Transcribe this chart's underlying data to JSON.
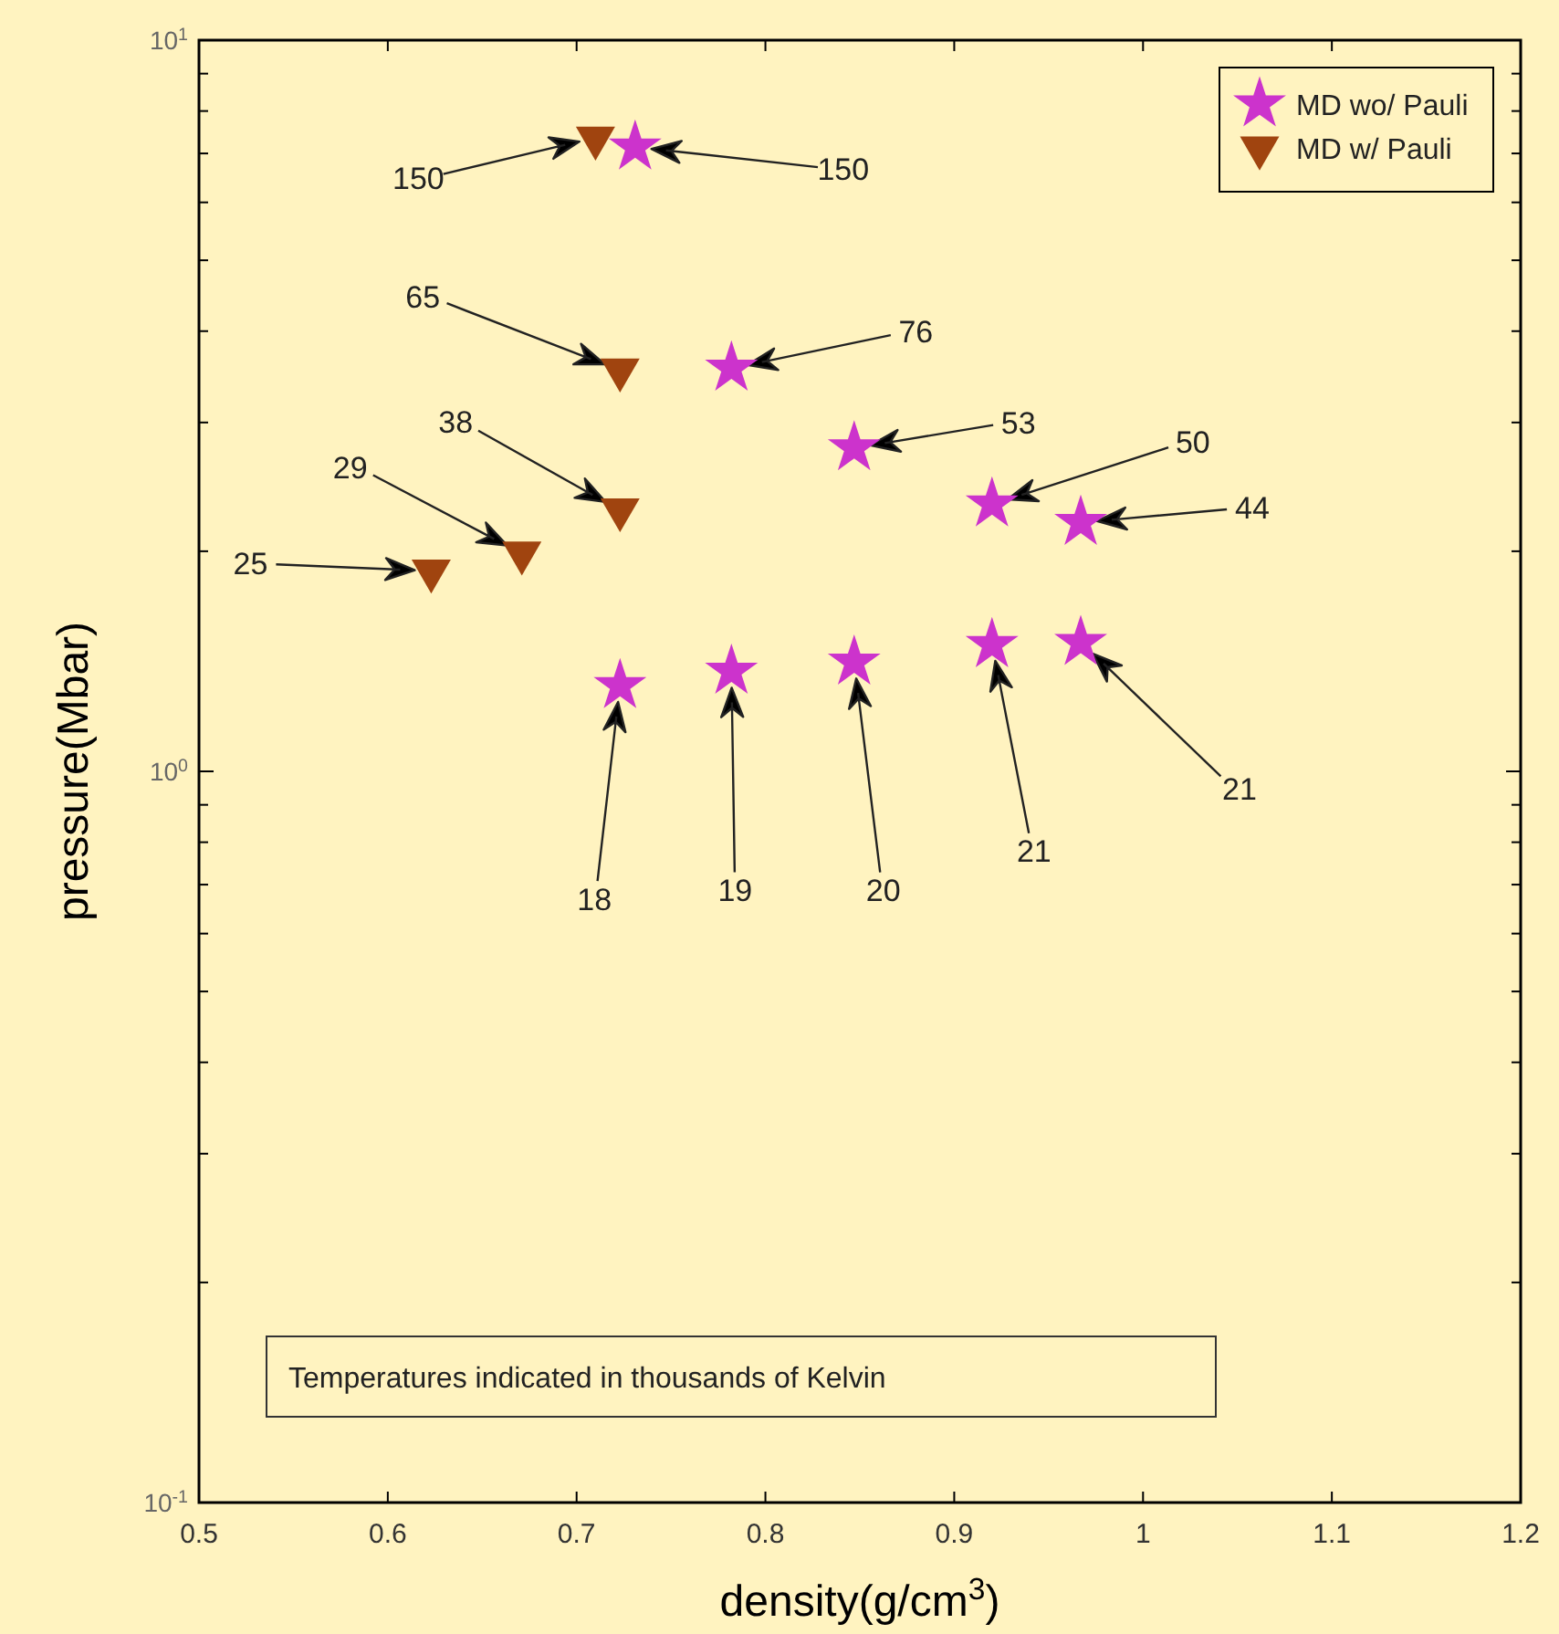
{
  "chart_data": {
    "type": "scatter",
    "xlabel": "density(g/cm$^{3}$)",
    "ylabel": "pressure(Mbar)",
    "log": "y",
    "legend": "top right",
    "xlim": [
      0.5,
      1.2
    ],
    "xticks": [
      0.5,
      0.6,
      0.7,
      0.8,
      0.9,
      {
        "value": 1,
        "label": "1"
      },
      1.1,
      1.2
    ],
    "ylim": [
      0.1,
      10
    ],
    "yticks": [
      {
        "value": 0.1,
        "label": "10$^{-1}$"
      },
      {
        "value": 0.2,
        "label": null
      },
      {
        "value": 0.3,
        "label": null
      },
      {
        "value": 0.4,
        "label": null
      },
      {
        "value": 0.5,
        "label": null
      },
      {
        "value": 0.6,
        "label": null
      },
      {
        "value": 0.7,
        "label": null
      },
      {
        "value": 0.8,
        "label": null
      },
      {
        "value": 0.9,
        "label": null
      },
      {
        "value": 1,
        "label": "10$^{0}$"
      },
      {
        "value": 2,
        "label": null
      },
      {
        "value": 3,
        "label": null
      },
      {
        "value": 4,
        "label": null
      },
      {
        "value": 5,
        "label": null
      },
      {
        "value": 6,
        "label": null
      },
      {
        "value": 7,
        "label": null
      },
      {
        "value": 8,
        "label": null
      },
      {
        "value": 9,
        "label": null
      },
      {
        "value": 10,
        "label": "10$^{1}$"
      }
    ],
    "series": [
      {
        "name": "MD wo/ Pauli",
        "color": "#cc33cc",
        "marker": "star",
        "x": [
          0.731,
          0.782,
          0.847,
          0.92,
          0.967,
          0.723,
          0.782,
          0.847,
          0.92,
          0.967
        ],
        "values": [
          7.14,
          3.56,
          2.77,
          2.32,
          2.19,
          1.31,
          1.37,
          1.41,
          1.49,
          1.5
        ]
      },
      {
        "name": "MD w/ Pauli",
        "color": "#a0440f",
        "marker": "triangle",
        "x": [
          0.71,
          0.723,
          0.723,
          0.671,
          0.623
        ],
        "values": [
          7.35,
          3.54,
          2.28,
          1.99,
          1.88
        ]
      }
    ],
    "annotations": [
      "150",
      "150",
      "65",
      "76",
      "38",
      "29",
      "25",
      "53",
      "50",
      "44",
      "18",
      "19",
      "20",
      "21",
      "21",
      "Temperatures indicated in thousands of Kelvin"
    ]
  }
}
